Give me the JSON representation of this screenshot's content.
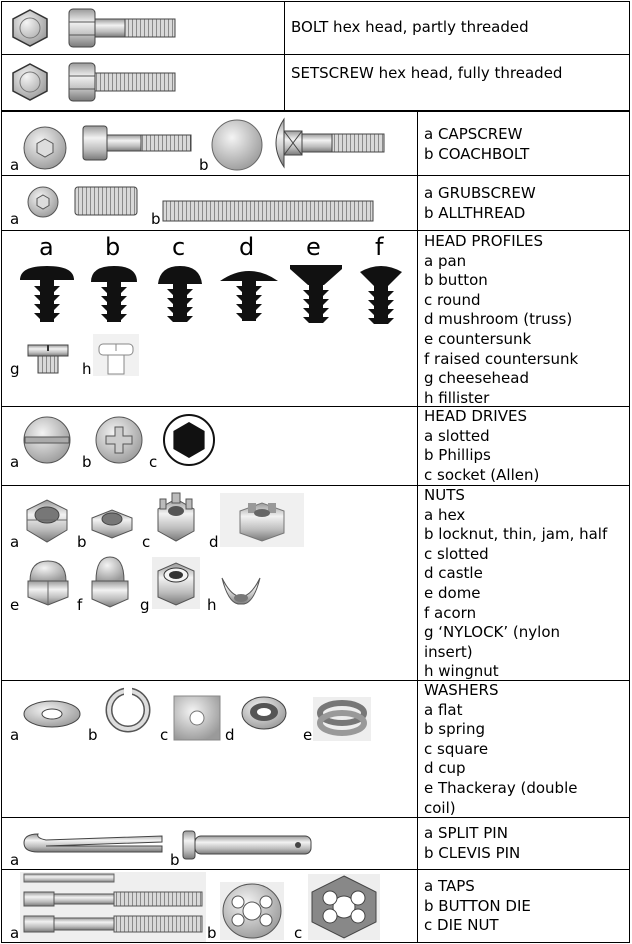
{
  "rows": [
    {
      "text": [
        "BOLT  hex head, partly threaded"
      ]
    },
    {
      "text": [
        "SETSCREW  hex head, fully threaded"
      ]
    },
    {
      "labels": [
        "a",
        "b"
      ],
      "text": [
        "a  CAPSCREW",
        "b  COACHBOLT"
      ]
    },
    {
      "labels": [
        "a",
        "b"
      ],
      "text": [
        "a  GRUBSCREW",
        "b  ALLTHREAD"
      ]
    },
    {
      "top_labels": [
        "a",
        "b",
        "c",
        "d",
        "e",
        "f"
      ],
      "labels": [
        "g",
        "h"
      ],
      "text": [
        "HEAD PROFILES",
        "a  pan",
        "b  button",
        "c  round",
        "d  mushroom (truss)",
        "e  countersunk",
        "f   raised countersunk",
        "g  cheesehead",
        "h  fillister"
      ]
    },
    {
      "labels": [
        "a",
        "b",
        "c"
      ],
      "text": [
        "HEAD DRIVES",
        "a  slotted",
        "b  Phillips",
        "c  socket (Allen)"
      ]
    },
    {
      "labels": [
        "a",
        "b",
        "c",
        "d",
        "e",
        "f",
        "g",
        "h"
      ],
      "text": [
        "NUTS",
        "a  hex",
        "b locknut, thin, jam, half",
        "c  slotted",
        "d  castle",
        "e  dome",
        "f   acorn",
        "g  ‘NYLOCK’ (nylon",
        "insert)",
        "h  wingnut"
      ]
    },
    {
      "labels": [
        "a",
        "b",
        "c",
        "d",
        "e"
      ],
      "text": [
        "WASHERS",
        "a  flat",
        "b  spring",
        "c square",
        "d cup",
        "e Thackeray (double",
        "coil)"
      ]
    },
    {
      "labels": [
        "a",
        "b"
      ],
      "text": [
        "a  SPLIT PIN",
        "b  CLEVIS PIN"
      ]
    },
    {
      "labels": [
        "a",
        "b",
        "c"
      ],
      "text": [
        "a  TAPS",
        "b  BUTTON DIE",
        "c  DIE NUT"
      ]
    }
  ]
}
